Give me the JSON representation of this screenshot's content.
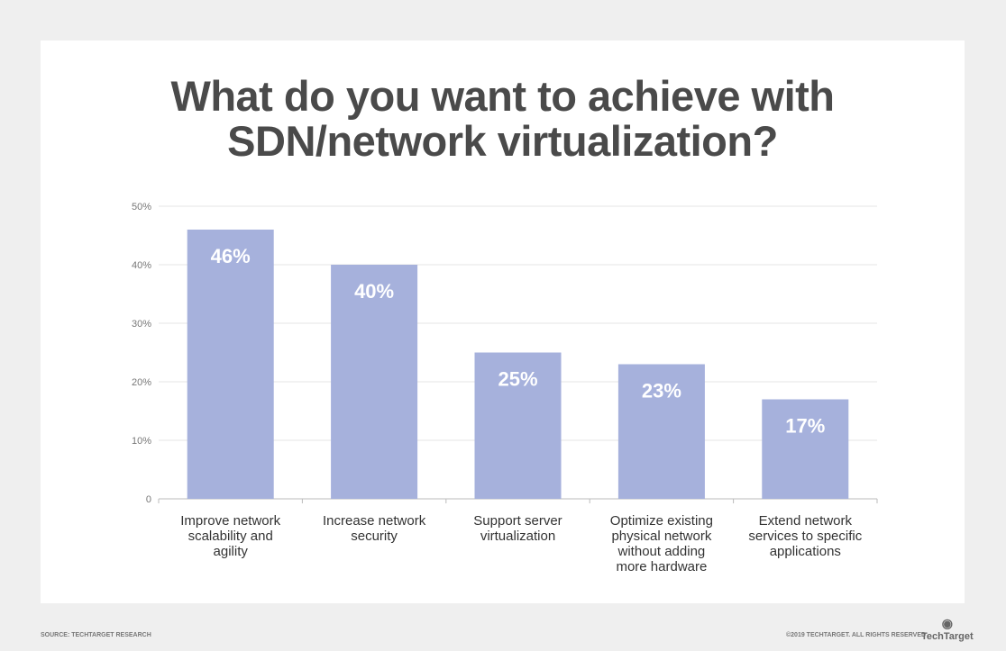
{
  "chart_data": {
    "type": "bar",
    "title": "What do you want to achieve with SDN/network virtualization?",
    "categories": [
      "Improve network scalability and agility",
      "Increase network security",
      "Support server virtualization",
      "Optimize existing physical network without adding more hardware",
      "Extend network services to specific applications"
    ],
    "category_lines": [
      [
        "Improve network",
        "scalability and",
        "agility"
      ],
      [
        "Increase network",
        "security"
      ],
      [
        "Support server",
        "virtualization"
      ],
      [
        "Optimize existing",
        "physical network",
        "without adding",
        "more hardware"
      ],
      [
        "Extend network",
        "services to specific",
        "applications"
      ]
    ],
    "values": [
      46,
      40,
      25,
      23,
      17
    ],
    "data_labels": [
      "46%",
      "40%",
      "25%",
      "23%",
      "17%"
    ],
    "ylim": [
      0,
      50
    ],
    "yticks": [
      0,
      10,
      20,
      30,
      40,
      50
    ],
    "ytick_labels": [
      "0",
      "10%",
      "20%",
      "30%",
      "40%",
      "50%"
    ],
    "grid": true,
    "bar_color": "#a6b1dc"
  },
  "footer": {
    "source": "SOURCE: TECHTARGET RESEARCH",
    "copyright": "©2019 TECHTARGET. ALL RIGHTS RESERVED",
    "logo": "TechTarget"
  }
}
